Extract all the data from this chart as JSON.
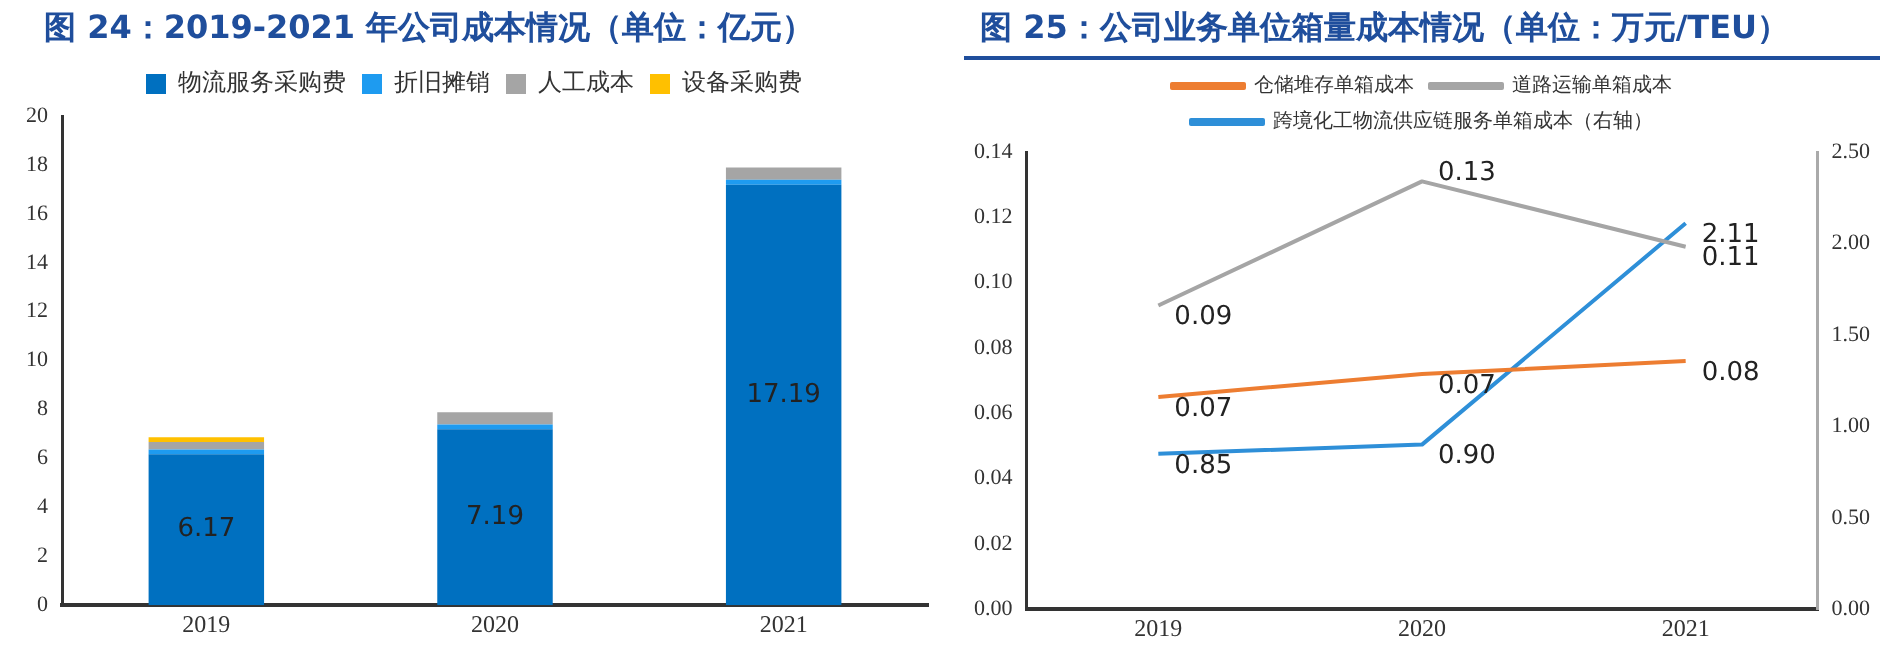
{
  "chart_data": [
    {
      "type": "bar",
      "title": "图 24：2019-2021 年公司成本情况（单位：亿元）",
      "categories": [
        "2019",
        "2020",
        "2021"
      ],
      "stacked": true,
      "legend": "top",
      "grid": false,
      "ylim": [
        0,
        20
      ],
      "yticks": [
        0,
        2,
        4,
        6,
        8,
        10,
        12,
        14,
        16,
        18,
        20
      ],
      "series": [
        {
          "name": "物流服务采购费",
          "color": "#0070c0",
          "values": [
            6.17,
            7.19,
            17.19
          ],
          "value_labels": [
            "6.17",
            "7.19",
            "17.19"
          ]
        },
        {
          "name": "折旧摊销",
          "color": "#1e9bf0",
          "values": [
            0.2,
            0.2,
            0.2
          ]
        },
        {
          "name": "人工成本",
          "color": "#a5a5a5",
          "values": [
            0.3,
            0.5,
            0.5
          ]
        },
        {
          "name": "设备采购费",
          "color": "#ffc000",
          "values": [
            0.2,
            0,
            0
          ]
        }
      ]
    },
    {
      "type": "line",
      "title": "图 25：公司业务单位箱量成本情况（单位：万元/TEU）",
      "categories": [
        "2019",
        "2020",
        "2021"
      ],
      "legend": "top",
      "grid": false,
      "marker": "none",
      "ylim": [
        0,
        0.14
      ],
      "yticks": [
        {
          "value": 0,
          "label": "0.00"
        },
        {
          "value": 0.02,
          "label": "0.02"
        },
        {
          "value": 0.04,
          "label": "0.04"
        },
        {
          "value": 0.06,
          "label": "0.06"
        },
        {
          "value": 0.08,
          "label": "0.08"
        },
        {
          "value": 0.1,
          "label": "0.10"
        },
        {
          "value": 0.12,
          "label": "0.12"
        },
        {
          "value": 0.14,
          "label": "0.14"
        }
      ],
      "y2lim": [
        0,
        2.5
      ],
      "y2ticks": [
        {
          "value": 0,
          "label": "0.00"
        },
        {
          "value": 0.5,
          "label": "0.50"
        },
        {
          "value": 1,
          "label": "1.00"
        },
        {
          "value": 1.5,
          "label": "1.50"
        },
        {
          "value": 2,
          "label": "2.00"
        },
        {
          "value": 2.5,
          "label": "2.50"
        }
      ],
      "series": [
        {
          "name": "仓储堆存单箱成本",
          "color": "#ed7d31",
          "values": [
            0.065,
            0.072,
            0.076
          ],
          "value_labels": [
            "0.07",
            "0.07",
            "0.08"
          ]
        },
        {
          "name": "道路运输单箱成本",
          "color": "#a5a5a5",
          "values": [
            0.093,
            0.131,
            0.111
          ],
          "value_labels": [
            "0.09",
            "0.13",
            "0.11"
          ]
        },
        {
          "name": "跨境化工物流供应链服务单箱成本（右轴）",
          "color": "#2e8fd8",
          "axis": "y2",
          "values": [
            0.85,
            0.9,
            2.11
          ],
          "value_labels": [
            "0.85",
            "0.90",
            "2.11"
          ]
        }
      ]
    }
  ]
}
